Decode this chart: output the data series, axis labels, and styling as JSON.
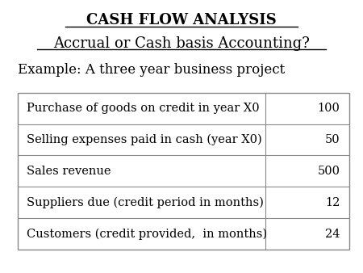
{
  "title1": "CASH FLOW ANALYSIS",
  "title2": "Accrual or Cash basis Accounting?",
  "subtitle": "Example: A three year business project",
  "table_rows": [
    [
      "Purchase of goods on credit in year X0",
      "100"
    ],
    [
      "Selling expenses paid in cash (year X0)",
      "50"
    ],
    [
      "Sales revenue",
      "500"
    ],
    [
      "Suppliers due (credit period in months)",
      "12"
    ],
    [
      "Customers (credit provided,  in months)",
      "24"
    ]
  ],
  "bg_color": "#ffffff",
  "table_border_color": "#888888",
  "text_color": "#000000",
  "title1_fontsize": 13,
  "title2_fontsize": 13,
  "subtitle_fontsize": 12,
  "table_fontsize": 10.5
}
